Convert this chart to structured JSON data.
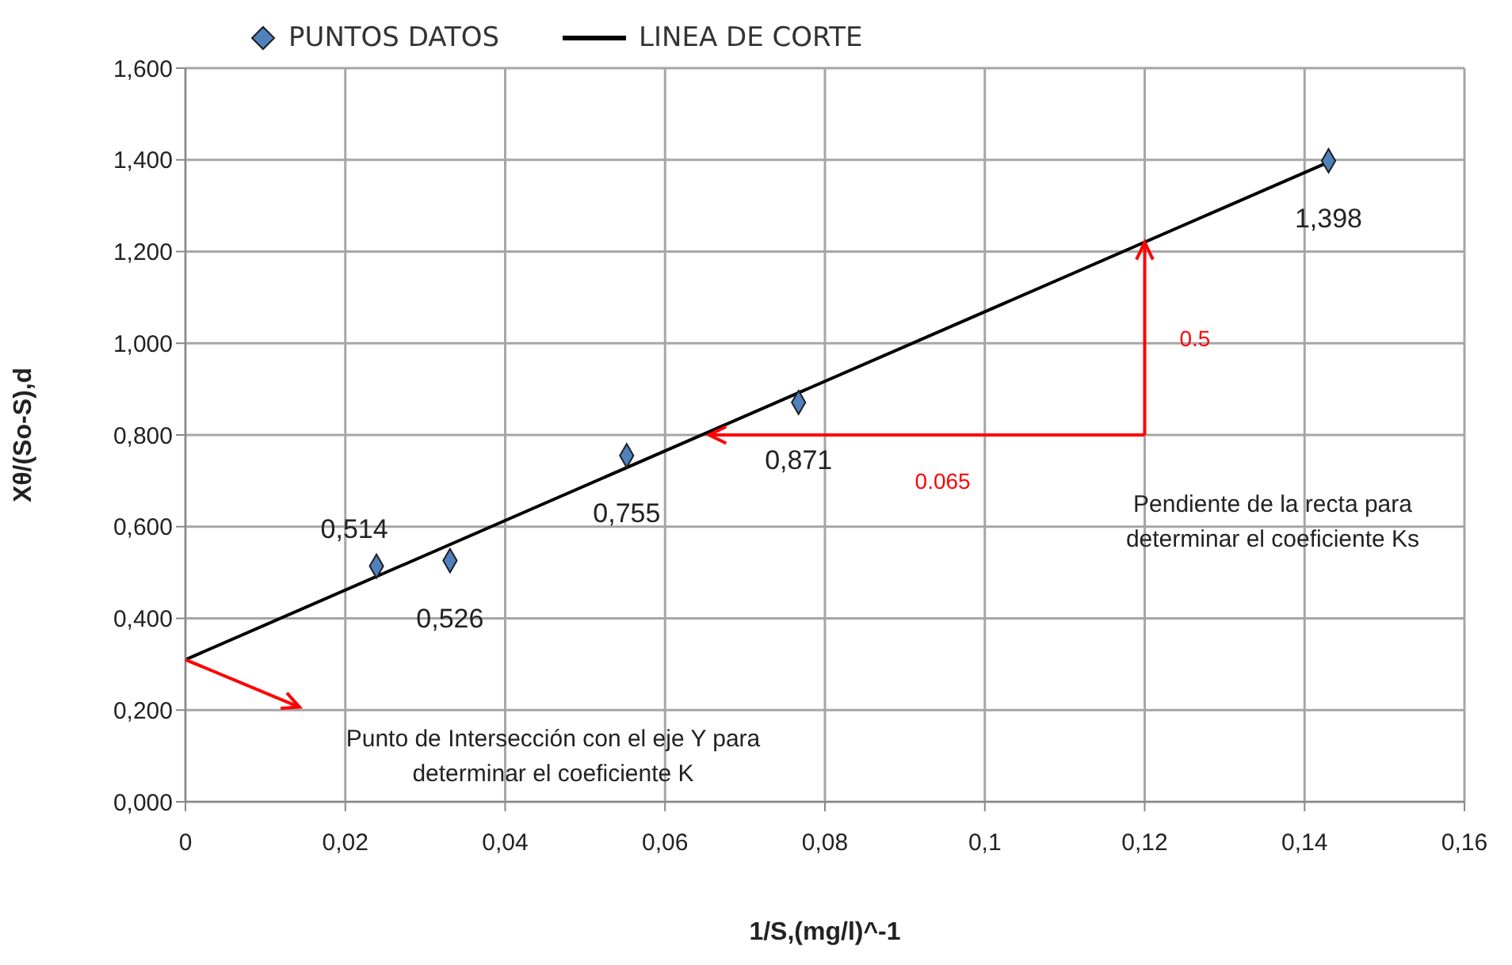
{
  "chart_data": {
    "type": "scatter",
    "xlabel": "1/S,(mg/l)^-1",
    "ylabel": "Xθ/(So-S),d",
    "xlim": [
      0,
      0.16
    ],
    "xticks": [
      0,
      {
        "value": 0.02,
        "label": "0,02"
      },
      {
        "value": 0.04,
        "label": "0,04"
      },
      {
        "value": 0.06,
        "label": "0,06"
      },
      {
        "value": 0.08,
        "label": "0,08"
      },
      {
        "value": 0.1,
        "label": "0,1"
      },
      {
        "value": 0.12,
        "label": "0,12"
      },
      {
        "value": 0.14,
        "label": "0,14"
      },
      {
        "value": 0.16,
        "label": "0,16"
      }
    ],
    "ylim": [
      0,
      1.6
    ],
    "yticks": [
      {
        "value": 0,
        "label": "0,000"
      },
      {
        "value": 0.2,
        "label": "0,200"
      },
      {
        "value": 0.4,
        "label": "0,400"
      },
      {
        "value": 0.6,
        "label": "0,600"
      },
      {
        "value": 0.8,
        "label": "0,800"
      },
      {
        "value": 1.0,
        "label": "1,000"
      },
      {
        "value": 1.2,
        "label": "1,200"
      },
      {
        "value": 1.4,
        "label": "1,400"
      },
      {
        "value": 1.6,
        "label": "1,600"
      }
    ],
    "grid": true,
    "legend": "top left",
    "series": [
      {
        "name": "PUNTOS DATOS",
        "marker": "diamond",
        "color": "#4f81bd",
        "x": [
          0.0239,
          0.0331,
          0.0552,
          0.0767,
          0.143
        ],
        "values": [
          0.514,
          0.526,
          0.755,
          0.871,
          1.398
        ],
        "value_labels": [
          "0,514",
          "0,526",
          "0,755",
          "0,871",
          "1,398"
        ]
      },
      {
        "name": "LINEA DE CORTE",
        "type": "line",
        "marker": "none",
        "color": "#000000",
        "x": [
          0,
          0.143
        ],
        "values": [
          0.31,
          1.395
        ]
      }
    ],
    "annotations": [
      "0.5",
      "0.065",
      "Punto de Intersección con el eje Y para determinar el coeficiente K",
      "Pendiente de la recta para determinar el coeficiente Ks"
    ]
  }
}
